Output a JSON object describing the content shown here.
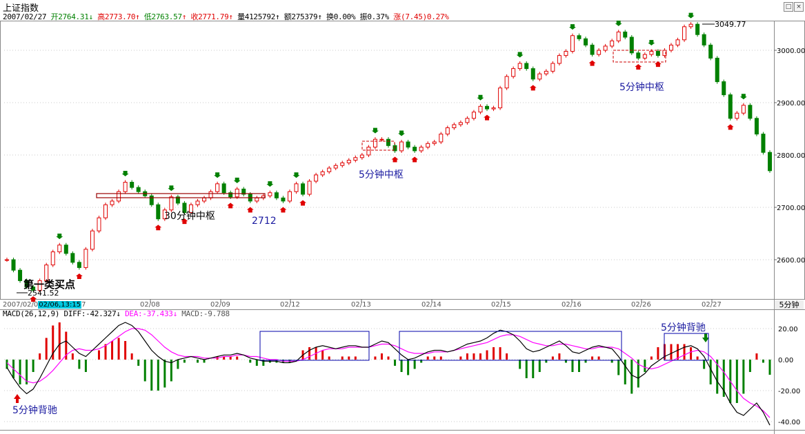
{
  "header": {
    "title": "上证指数",
    "date": "2007/02/27",
    "open_label": "开",
    "open": "2764.31",
    "high_label": "高",
    "high": "2773.70",
    "low_label": "低",
    "low": "2763.57",
    "close_label": "收",
    "close": "2771.79",
    "volume_label": "量",
    "volume": "4125792",
    "amount_label": "额",
    "amount": "275379",
    "turnover_label": "换",
    "turnover": "0.00%",
    "amplitude_label": "振",
    "amplitude": "0.37%",
    "change_label": "涨",
    "change": "(7.45)0.27%",
    "arrow_down": "↓",
    "arrow_up": "↑"
  },
  "window_controls": {
    "max_icon": "□",
    "close_icon": "×"
  },
  "macd_header": {
    "name": "MACD(26,12,9)",
    "diff_label": "DIFF:",
    "diff": "-42.327",
    "dea_label": "DEA:",
    "dea": "-37.433",
    "macd_label": "MACD:",
    "macd": "-9.788",
    "arrow": "↓"
  },
  "time_axis": {
    "period_label": "5分钟",
    "cursor_date_left": "2007/02/0",
    "cursor_date_highlight": "02/06,13:15",
    "cursor_date_right": "7",
    "ticks": [
      "02/08",
      "02/09",
      "02/12",
      "02/13",
      "02/14",
      "02/15",
      "02/16",
      "02/26",
      "02/27"
    ]
  },
  "price_annotations": {
    "low_value": "2541.52",
    "high_value": "3049.77",
    "buy_point_label": "第一类买点",
    "zhongshu_30m": "30分钟中枢",
    "zhongshu_5m_1": "5分钟中枢",
    "zhongshu_5m_2": "5分钟中枢",
    "level_2712": "2712"
  },
  "macd_annotations": {
    "divergence_1": "5分钟背驰",
    "divergence_2": "5分钟背驰"
  },
  "colors": {
    "up": "#e00000",
    "down": "#008000",
    "diff_line": "#000000",
    "dea_line": "#ff00ff",
    "zhongshu_box": "#0000aa",
    "zhongshu_price_box": "#990000",
    "highlight_bg": "#00c8e0"
  },
  "chart_data": [
    {
      "type": "line",
      "title": "上证指数 5分钟",
      "y_ticks": [
        "2600.00",
        "2700.00",
        "2800.00",
        "2900.00",
        "3000.00"
      ],
      "ylim": [
        2520,
        3070
      ],
      "x_ticks": [
        "02/08",
        "02/09",
        "02/12",
        "02/13",
        "02/14",
        "02/15",
        "02/16",
        "02/26",
        "02/27"
      ],
      "series": [
        {
          "name": "price",
          "values": [
            2600,
            2580,
            2560,
            2548,
            2541.52,
            2560,
            2590,
            2615,
            2628,
            2612,
            2595,
            2585,
            2620,
            2655,
            2680,
            2705,
            2712,
            2730,
            2748,
            2738,
            2730,
            2722,
            2705,
            2678,
            2695,
            2720,
            2708,
            2690,
            2705,
            2712,
            2718,
            2730,
            2745,
            2728,
            2720,
            2735,
            2725,
            2712,
            2718,
            2722,
            2728,
            2718,
            2712,
            2730,
            2745,
            2725,
            2750,
            2762,
            2768,
            2775,
            2780,
            2785,
            2790,
            2795,
            2800,
            2815,
            2830,
            2830,
            2818,
            2808,
            2825,
            2815,
            2808,
            2815,
            2822,
            2825,
            2840,
            2852,
            2858,
            2862,
            2870,
            2882,
            2893,
            2888,
            2890,
            2928,
            2950,
            2965,
            2975,
            2965,
            2945,
            2955,
            2960,
            2975,
            2990,
            2998,
            3028,
            3022,
            3010,
            2992,
            3000,
            3008,
            3018,
            3035,
            3025,
            2995,
            2985,
            2992,
            2998,
            2990,
            3000,
            3010,
            3020,
            3045,
            3049.77,
            3030,
            3010,
            2985,
            2940,
            2915,
            2870,
            2880,
            2895,
            2870,
            2840,
            2805,
            2770
          ]
        }
      ]
    },
    {
      "type": "bar",
      "title": "MACD(26,12,9)",
      "y_ticks": [
        "20.00",
        "0.00",
        "-20.00",
        "-40.00"
      ],
      "ylim": [
        -44,
        24
      ],
      "series": [
        {
          "name": "DIFF",
          "values": [
            -5,
            -12,
            -18,
            -22,
            -19,
            -12,
            -4,
            4,
            10,
            12,
            8,
            4,
            2,
            6,
            10,
            14,
            18,
            22,
            24,
            22,
            18,
            12,
            6,
            2,
            -1,
            -2,
            0,
            1,
            2,
            1,
            0,
            1,
            2,
            3,
            3,
            4,
            3,
            1,
            0,
            -1,
            -1,
            -1,
            -2,
            -2,
            -1,
            3,
            6,
            8,
            9,
            8,
            7,
            8,
            9,
            9,
            8,
            8,
            10,
            12,
            11,
            7,
            3,
            0,
            1,
            3,
            5,
            6,
            6,
            5,
            6,
            8,
            10,
            11,
            12,
            14,
            17,
            19,
            18,
            16,
            12,
            7,
            5,
            6,
            8,
            10,
            12,
            9,
            5,
            4,
            6,
            8,
            9,
            8,
            7,
            2,
            -4,
            -10,
            -12,
            -9,
            -4,
            -1,
            2,
            4,
            6,
            8,
            9,
            7,
            2,
            -6,
            -14,
            -20,
            -28,
            -34,
            -36,
            -32,
            -28,
            -34,
            -42.327
          ]
        },
        {
          "name": "DEA",
          "values": [
            -2,
            -6,
            -10,
            -14,
            -15,
            -14,
            -11,
            -7,
            -2,
            3,
            6,
            7,
            6,
            6,
            7,
            9,
            12,
            15,
            18,
            20,
            20,
            19,
            16,
            12,
            8,
            5,
            3,
            2,
            2,
            2,
            1,
            1,
            1,
            2,
            2,
            3,
            3,
            2,
            2,
            1,
            0,
            0,
            -1,
            -1,
            -1,
            0,
            2,
            4,
            6,
            7,
            7,
            7,
            8,
            8,
            8,
            8,
            9,
            10,
            10,
            9,
            7,
            5,
            4,
            4,
            4,
            5,
            5,
            5,
            6,
            7,
            8,
            9,
            10,
            11,
            13,
            15,
            16,
            16,
            15,
            13,
            11,
            10,
            9,
            9,
            10,
            10,
            9,
            8,
            7,
            7,
            8,
            8,
            8,
            7,
            4,
            1,
            -3,
            -5,
            -6,
            -5,
            -3,
            -1,
            1,
            3,
            5,
            6,
            5,
            2,
            -3,
            -8,
            -14,
            -20,
            -25,
            -28,
            -30,
            -33,
            -37.433
          ]
        },
        {
          "name": "MACD",
          "values": [
            -6,
            -12,
            -16,
            -16,
            -8,
            4,
            14,
            22,
            24,
            18,
            4,
            -6,
            -8,
            0,
            6,
            10,
            12,
            14,
            12,
            4,
            -4,
            -14,
            -20,
            -20,
            -18,
            -14,
            -6,
            -2,
            0,
            -2,
            -2,
            0,
            2,
            2,
            2,
            2,
            0,
            -2,
            -4,
            -4,
            -2,
            -2,
            -2,
            -2,
            0,
            6,
            8,
            8,
            6,
            2,
            0,
            2,
            2,
            2,
            0,
            0,
            2,
            4,
            2,
            -4,
            -8,
            -10,
            -6,
            -2,
            2,
            2,
            2,
            0,
            0,
            2,
            4,
            4,
            4,
            6,
            8,
            8,
            4,
            0,
            -6,
            -12,
            -12,
            -8,
            -2,
            2,
            4,
            -2,
            -8,
            -8,
            -2,
            2,
            2,
            0,
            -2,
            -10,
            -16,
            -22,
            -18,
            -8,
            2,
            8,
            10,
            10,
            10,
            10,
            8,
            2,
            -6,
            -16,
            -22,
            -24,
            -28,
            -28,
            -22,
            -8,
            4,
            -2,
            -9.788
          ]
        }
      ]
    }
  ]
}
